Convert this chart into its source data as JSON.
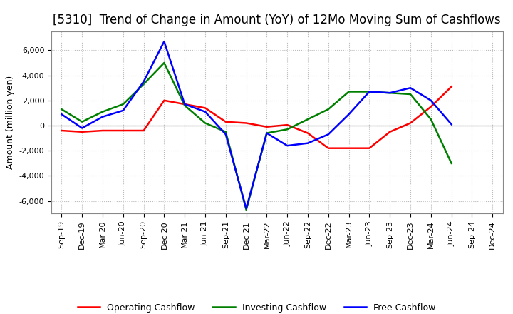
{
  "title": "[5310]  Trend of Change in Amount (YoY) of 12Mo Moving Sum of Cashflows",
  "ylabel": "Amount (million yen)",
  "x_labels": [
    "Sep-19",
    "Dec-19",
    "Mar-20",
    "Jun-20",
    "Sep-20",
    "Dec-20",
    "Mar-21",
    "Jun-21",
    "Sep-21",
    "Dec-21",
    "Mar-22",
    "Jun-22",
    "Sep-22",
    "Dec-22",
    "Mar-23",
    "Jun-23",
    "Sep-23",
    "Dec-23",
    "Mar-24",
    "Jun-24",
    "Sep-24",
    "Dec-24"
  ],
  "operating": [
    -400,
    -500,
    -400,
    -400,
    -400,
    2000,
    1700,
    1400,
    300,
    200,
    -100,
    50,
    -600,
    -1800,
    -1800,
    -1800,
    -500,
    200,
    1500,
    3100,
    null,
    null
  ],
  "investing": [
    1300,
    300,
    1100,
    1700,
    3300,
    5000,
    1600,
    200,
    -500,
    -6700,
    -600,
    -300,
    500,
    1300,
    2700,
    2700,
    2600,
    2500,
    500,
    -3000,
    null,
    null
  ],
  "free": [
    900,
    -200,
    700,
    1200,
    3500,
    6700,
    1700,
    1100,
    -700,
    -6600,
    -600,
    -1600,
    -1400,
    -700,
    900,
    2700,
    2600,
    3000,
    2000,
    100,
    null,
    null
  ],
  "operating_color": "#ff0000",
  "investing_color": "#008000",
  "free_color": "#0000ff",
  "ylim": [
    -7000,
    7500
  ],
  "yticks": [
    -6000,
    -4000,
    -2000,
    0,
    2000,
    4000,
    6000
  ],
  "background_color": "#ffffff",
  "grid_color": "#bbbbbb",
  "title_fontsize": 12,
  "axis_fontsize": 9,
  "legend_fontsize": 9,
  "tick_fontsize": 8
}
